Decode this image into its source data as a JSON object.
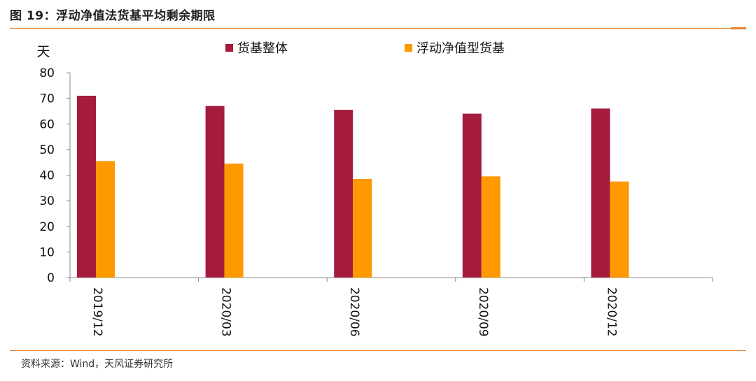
{
  "figure": {
    "title": "图 19：浮动净值法货基平均剩余期限",
    "source": "资料来源：Wind，天风证券研究所"
  },
  "chart_data": {
    "type": "bar",
    "ylabel": "天",
    "ylim": [
      0,
      80
    ],
    "yticks": [
      0,
      10,
      20,
      30,
      40,
      50,
      60,
      70,
      80
    ],
    "categories": [
      "2019/12",
      "2020/03",
      "2020/06",
      "2020/09",
      "2020/12"
    ],
    "legend_position": "top",
    "grid": false,
    "series": [
      {
        "name": "货基整体",
        "color": "#a51b3c",
        "values": [
          71,
          67,
          65.5,
          64,
          66
        ]
      },
      {
        "name": "浮动净值型货基",
        "color": "#ff9900",
        "values": [
          45.5,
          44.5,
          38.5,
          39.5,
          37.5
        ]
      }
    ]
  }
}
